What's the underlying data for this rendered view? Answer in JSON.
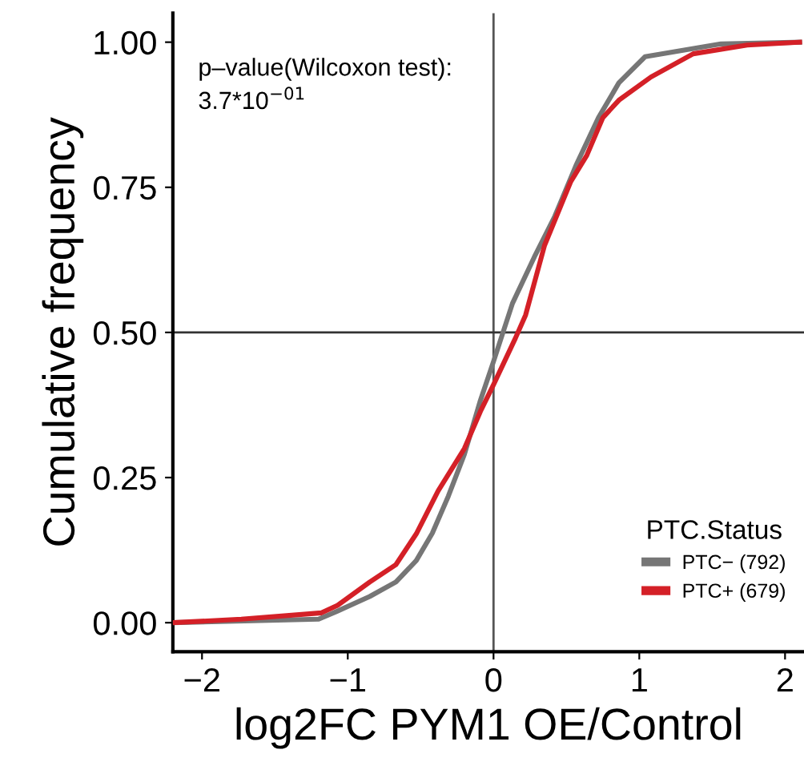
{
  "chart_data": {
    "type": "line",
    "xlabel": "log2FC PYM1 OE/Control",
    "ylabel": "Cumulative frequency",
    "legend_title": "PTC.Status",
    "legend": "bottom right",
    "annotations": [
      "p–value(Wilcoxon test):\n3.7*10$^{−01}$"
    ],
    "series": [
      {
        "name": "PTC− (792)",
        "color": "#767676",
        "x": [
          -2.2,
          -1.2,
          -1.07,
          -0.85,
          -0.67,
          -0.53,
          -0.42,
          -0.31,
          -0.2,
          -0.09,
          0,
          0.13,
          0.28,
          0.42,
          0.57,
          0.72,
          0.86,
          1.04,
          1.3,
          1.56,
          2.1
        ],
        "values": [
          0,
          0.006,
          0.02,
          0.045,
          0.07,
          0.107,
          0.154,
          0.218,
          0.29,
          0.383,
          0.45,
          0.55,
          0.63,
          0.7,
          0.79,
          0.87,
          0.93,
          0.975,
          0.986,
          0.997,
          1.0
        ]
      },
      {
        "name": "PTC+ (679)",
        "color": "#d42027",
        "x": [
          -2.2,
          -1.73,
          -1.18,
          -1.07,
          -0.85,
          -0.67,
          -0.53,
          -0.38,
          -0.2,
          -0.09,
          0,
          0.15,
          0.22,
          0.35,
          0.53,
          0.64,
          0.75,
          0.86,
          1.08,
          1.37,
          1.74,
          2.1
        ],
        "values": [
          0,
          0.006,
          0.017,
          0.03,
          0.07,
          0.1,
          0.153,
          0.227,
          0.3,
          0.364,
          0.41,
          0.49,
          0.53,
          0.65,
          0.76,
          0.805,
          0.87,
          0.9,
          0.94,
          0.98,
          0.995,
          1.0
        ]
      }
    ],
    "xlim": [
      -2.2,
      2.13
    ],
    "xticks": [
      {
        "value": -2,
        "label": "−2"
      },
      {
        "value": -1,
        "label": "−1"
      },
      0,
      1,
      2
    ],
    "ylim": [
      -0.05,
      1.05
    ],
    "yticks": [
      {
        "value": 0,
        "label": "0.00"
      },
      {
        "value": 0.25,
        "label": "0.25"
      },
      {
        "value": 0.5,
        "label": "0.50"
      },
      {
        "value": 0.75,
        "label": "0.75"
      },
      {
        "value": 1,
        "label": "1.00"
      }
    ],
    "ref_lines": [
      {
        "axis": "x",
        "value": 0,
        "color": "#555555"
      },
      {
        "axis": "y",
        "value": 0.5,
        "color": "#333333"
      }
    ],
    "grid": false
  }
}
